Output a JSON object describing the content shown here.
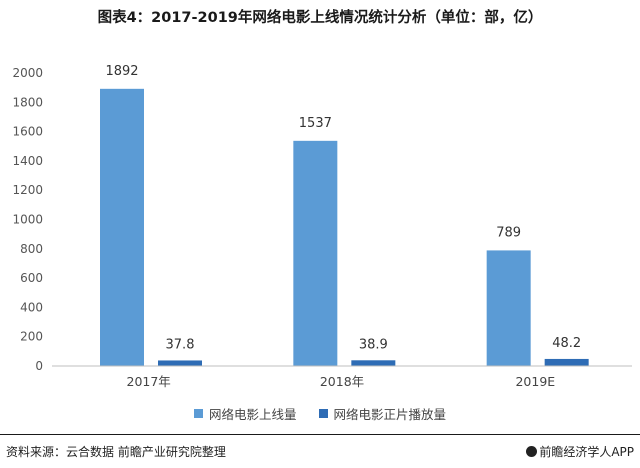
{
  "title": "图表4：2017-2019年网络电影上线情况统计分析（单位：部，亿）",
  "colors": {
    "series1": "#5B9BD5",
    "series2": "#2E6CB5",
    "axis": "#bfbfbf",
    "grid": "#e5e5e5"
  },
  "chart_data": {
    "type": "bar",
    "categories": [
      "2017年",
      "2018年",
      "2019E"
    ],
    "series": [
      {
        "name": "网络电影上线量",
        "values": [
          1892,
          1537,
          789
        ]
      },
      {
        "name": "网络电影正片播放量",
        "values": [
          37.8,
          38.9,
          48.2
        ]
      }
    ],
    "ylim": [
      0,
      2000
    ],
    "yticks": [
      0,
      200,
      400,
      600,
      800,
      1000,
      1200,
      1400,
      1600,
      1800,
      2000
    ],
    "grid": false,
    "legend": "bottom"
  },
  "footer": {
    "source": "资料来源：云合数据 前瞻产业研究院整理",
    "brand": "前瞻经济学人APP"
  }
}
